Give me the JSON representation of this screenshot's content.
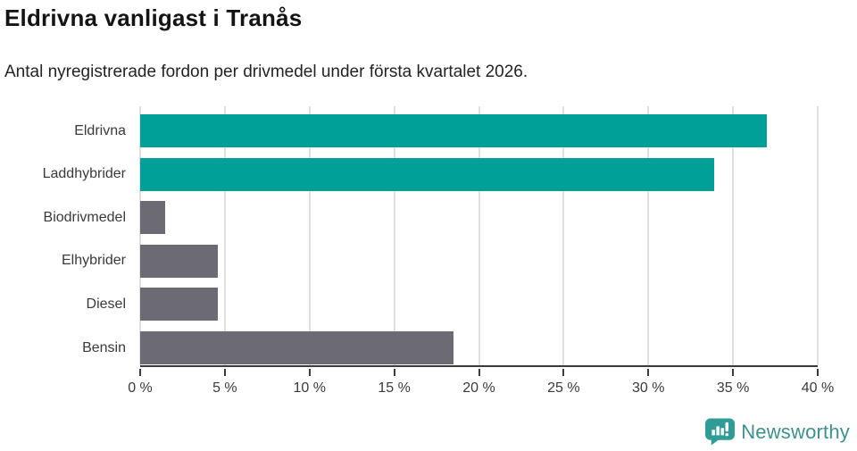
{
  "header": {
    "title": "Eldrivna vanligast i Tranås",
    "subtitle": "Antal nyregistrerade fordon per drivmedel under första kvartalet 2026."
  },
  "footer": {
    "brand": "Newsworthy"
  },
  "colors": {
    "accent_teal": "#00a099",
    "neutral_gray": "#6c6b74",
    "gridline": "#e0e0e0",
    "axis": "#3a3a3a",
    "brand_teal": "#3e918d"
  },
  "chart_data": {
    "type": "bar",
    "orientation": "horizontal",
    "title": "Eldrivna vanligast i Tranås",
    "subtitle": "Antal nyregistrerade fordon per drivmedel under första kvartalet 2026.",
    "categories": [
      "Eldrivna",
      "Laddhybrider",
      "Biodrivmedel",
      "Elhybrider",
      "Diesel",
      "Bensin"
    ],
    "values": [
      37,
      33.9,
      1.5,
      4.6,
      4.6,
      18.5
    ],
    "unit": "%",
    "xlabel": "",
    "ylabel": "",
    "xlim": [
      0,
      40
    ],
    "x_tick_values": [
      0,
      5,
      10,
      15,
      20,
      25,
      30,
      35,
      40
    ],
    "x_tick_labels": [
      "0 %",
      "5 %",
      "10 %",
      "15 %",
      "20 %",
      "25 %",
      "30 %",
      "35 %",
      "40 %"
    ],
    "bar_colors": [
      "#00a099",
      "#00a099",
      "#6c6b74",
      "#6c6b74",
      "#6c6b74",
      "#6c6b74"
    ],
    "grid": true,
    "legend": false
  }
}
